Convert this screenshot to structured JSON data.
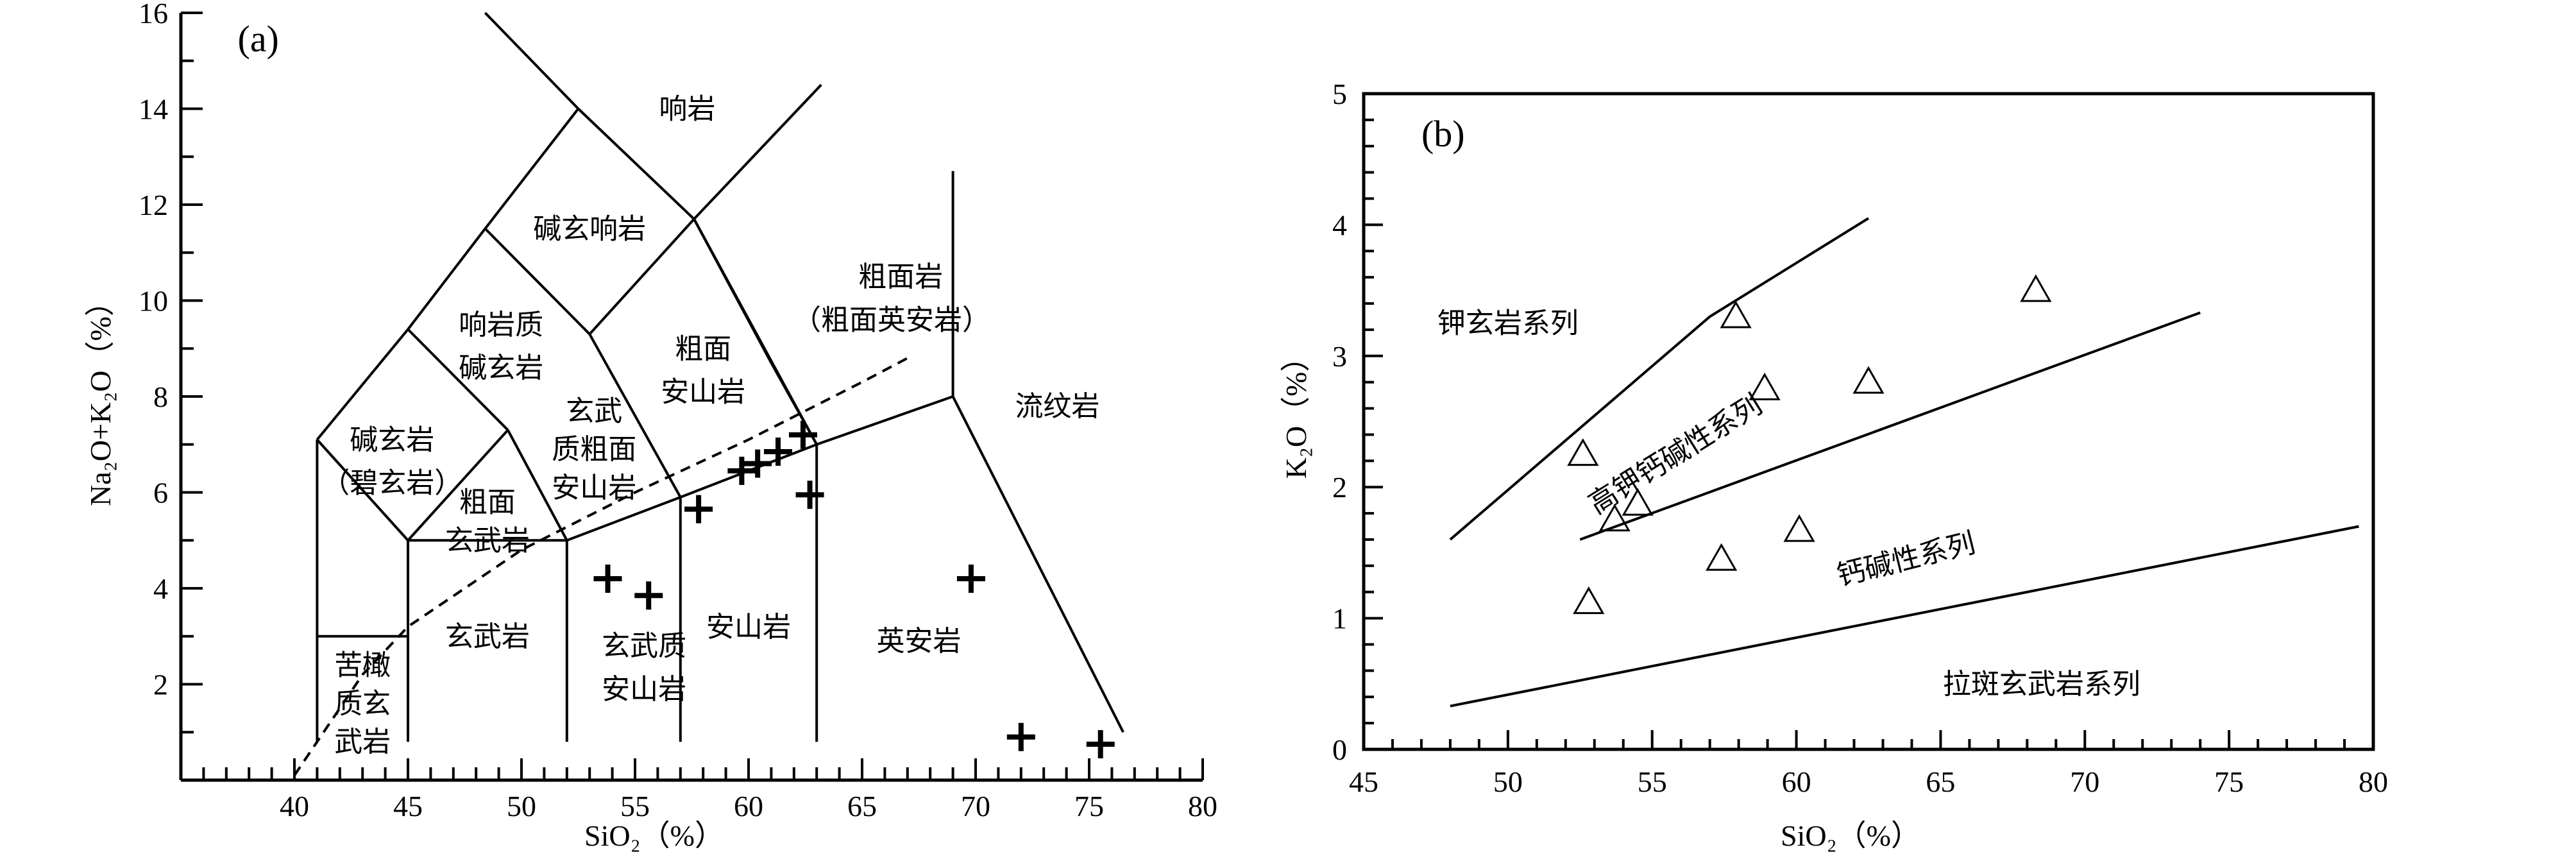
{
  "chart_data": [
    {
      "type": "scatter",
      "panel_label": "(a)",
      "xlabel": "SiO₂（%）",
      "ylabel": "Na₂O+K₂O（%）",
      "xlim": [
        35,
        80
      ],
      "ylim": [
        0,
        16
      ],
      "xticks": [
        "40",
        "45",
        "50",
        "55",
        "60",
        "65",
        "70",
        "75",
        "80"
      ],
      "yticks": [
        "2",
        "4",
        "6",
        "8",
        "10",
        "12",
        "14",
        "16"
      ],
      "marker": "plus",
      "points": [
        {
          "x": 53.8,
          "y": 4.2
        },
        {
          "x": 55.6,
          "y": 3.85
        },
        {
          "x": 57.8,
          "y": 5.65
        },
        {
          "x": 59.7,
          "y": 6.45
        },
        {
          "x": 60.4,
          "y": 6.6
        },
        {
          "x": 61.3,
          "y": 6.85
        },
        {
          "x": 62.4,
          "y": 7.2
        },
        {
          "x": 62.7,
          "y": 5.95
        },
        {
          "x": 69.8,
          "y": 4.2
        },
        {
          "x": 72.0,
          "y": 0.9
        },
        {
          "x": 75.5,
          "y": 0.75
        }
      ],
      "field_labels": [
        {
          "text": "响岩",
          "x": 57.3,
          "y": 14.0
        },
        {
          "text": "碱玄响岩",
          "x": 53.0,
          "y": 11.5
        },
        {
          "text": "粗面岩",
          "x": 66.7,
          "y": 10.5
        },
        {
          "text": "（粗面英安岩）",
          "x": 66.3,
          "y": 9.6
        },
        {
          "text": "响岩质",
          "x": 49.1,
          "y": 9.5
        },
        {
          "text": "碱玄岩",
          "x": 49.1,
          "y": 8.6
        },
        {
          "text": "粗面",
          "x": 58.0,
          "y": 9.0
        },
        {
          "text": "安山岩",
          "x": 58.0,
          "y": 8.1
        },
        {
          "text": "玄武",
          "x": 53.2,
          "y": 7.7
        },
        {
          "text": "质粗面",
          "x": 53.2,
          "y": 6.9
        },
        {
          "text": "安山岩",
          "x": 53.2,
          "y": 6.1
        },
        {
          "text": "碱玄岩",
          "x": 44.3,
          "y": 7.1
        },
        {
          "text": "（碧玄岩）",
          "x": 44.3,
          "y": 6.2
        },
        {
          "text": "粗面",
          "x": 48.5,
          "y": 5.8
        },
        {
          "text": "玄武岩",
          "x": 48.5,
          "y": 5.0
        },
        {
          "text": "流纹岩",
          "x": 73.6,
          "y": 7.8
        },
        {
          "text": "玄武岩",
          "x": 48.5,
          "y": 3.0
        },
        {
          "text": "玄武质",
          "x": 55.4,
          "y": 2.8
        },
        {
          "text": "安山岩",
          "x": 55.4,
          "y": 1.9
        },
        {
          "text": "安山岩",
          "x": 60.0,
          "y": 3.2
        },
        {
          "text": "英安岩",
          "x": 67.5,
          "y": 2.9
        },
        {
          "text": "苦橄",
          "x": 43.0,
          "y": 2.4
        },
        {
          "text": "质玄",
          "x": 43.0,
          "y": 1.6
        },
        {
          "text": "武岩",
          "x": 43.0,
          "y": 0.8
        }
      ]
    },
    {
      "type": "scatter",
      "panel_label": "(b)",
      "xlabel": "SiO₂（%）",
      "ylabel": "K₂O（%）",
      "xlim": [
        45,
        80
      ],
      "ylim": [
        0,
        5
      ],
      "xticks": [
        "45",
        "50",
        "55",
        "60",
        "65",
        "70",
        "75",
        "80"
      ],
      "yticks": [
        "0",
        "1",
        "2",
        "3",
        "4",
        "5"
      ],
      "marker": "triangle",
      "points": [
        {
          "x": 52.6,
          "y": 2.25
        },
        {
          "x": 52.8,
          "y": 1.12
        },
        {
          "x": 53.7,
          "y": 1.75
        },
        {
          "x": 54.5,
          "y": 1.87
        },
        {
          "x": 57.4,
          "y": 1.45
        },
        {
          "x": 57.9,
          "y": 3.3
        },
        {
          "x": 58.9,
          "y": 2.75
        },
        {
          "x": 60.1,
          "y": 1.67
        },
        {
          "x": 62.5,
          "y": 2.8
        },
        {
          "x": 68.3,
          "y": 3.5
        }
      ],
      "series_labels": [
        {
          "text": "钾玄岩系列",
          "x": 50.0,
          "y": 3.25,
          "angle": 0
        },
        {
          "text": "高钾钙碱性系列",
          "x": 55.8,
          "y": 2.25,
          "angle": -32
        },
        {
          "text": "钙碱性系列",
          "x": 63.8,
          "y": 1.45,
          "angle": -14
        },
        {
          "text": "拉斑玄武岩系列",
          "x": 68.5,
          "y": 0.5,
          "angle": 0
        }
      ]
    }
  ]
}
